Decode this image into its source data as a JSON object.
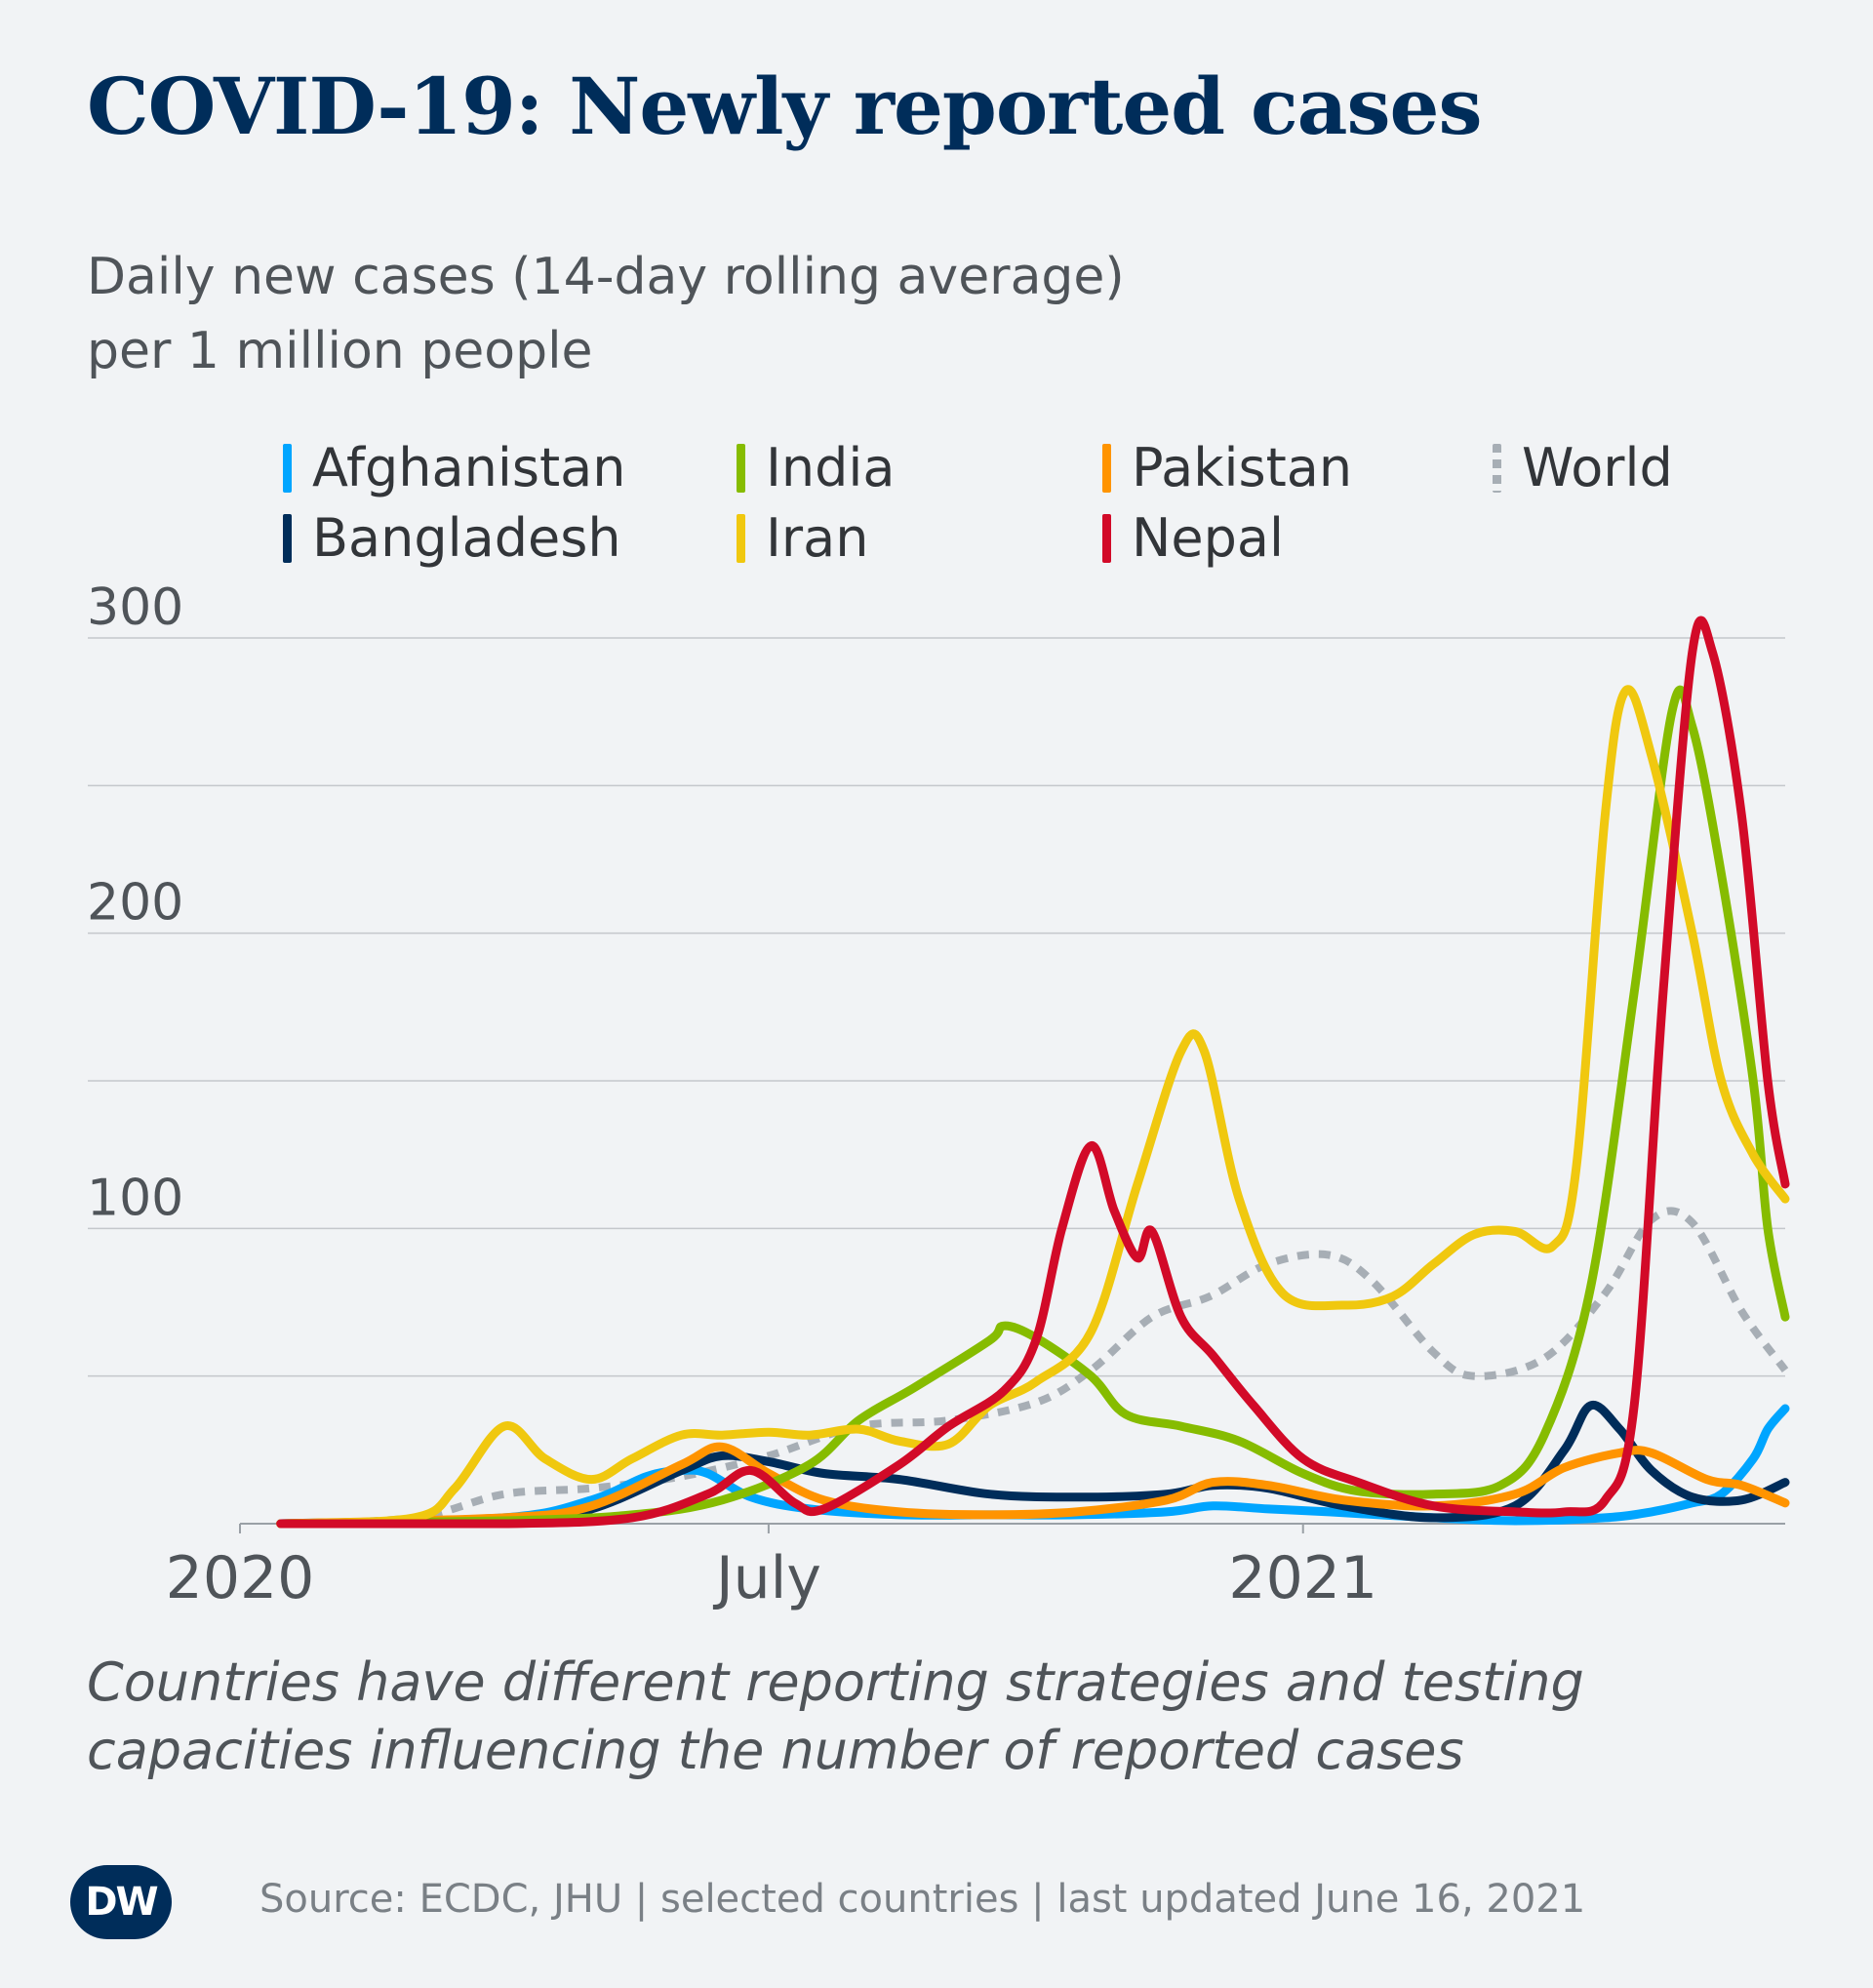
{
  "header": {
    "title": "COVID-19: Newly reported cases",
    "subtitle_line1": "Daily new cases (14-day rolling average)",
    "subtitle_line2": "per 1 million people"
  },
  "footer": {
    "note_line1": "Countries have different reporting strategies and testing",
    "note_line2": "capacities influencing the number of reported cases",
    "source": "Source: ECDC, JHU | selected countries | last updated June 16, 2021",
    "logo": "DW"
  },
  "legend": {
    "afghanistan": "Afghanistan",
    "india": "India",
    "pakistan": "Pakistan",
    "world": "World",
    "bangladesh": "Bangladesh",
    "iran": "Iran",
    "nepal": "Nepal"
  },
  "colors": {
    "background": "#f1f3f5",
    "title": "#002d5a",
    "grid": "#c4c7cb"
  },
  "chart_data": {
    "type": "line",
    "title": "COVID-19: Newly reported cases",
    "ylabel": "Daily new cases (14-day rolling average) per 1 million people",
    "ylim": [
      0,
      300
    ],
    "y_ticks": [
      100,
      200,
      300
    ],
    "grid": true,
    "x_ticks": [
      {
        "date": "2020-01-01",
        "label": "2020"
      },
      {
        "date": "2020-07-01",
        "label": "July"
      },
      {
        "date": "2021-01-01",
        "label": "2021"
      }
    ],
    "xlim": [
      "2020-01-01",
      "2021-06-16"
    ],
    "legend_position": "top",
    "series": [
      {
        "name": "Afghanistan",
        "color": "#00a5ff",
        "dash": false,
        "points": [
          [
            "2020-01-15",
            0
          ],
          [
            "2020-04-01",
            2
          ],
          [
            "2020-05-01",
            8
          ],
          [
            "2020-05-20",
            16
          ],
          [
            "2020-06-01",
            18
          ],
          [
            "2020-06-10",
            17
          ],
          [
            "2020-06-25",
            9
          ],
          [
            "2020-07-15",
            5
          ],
          [
            "2020-08-15",
            3
          ],
          [
            "2020-09-15",
            3
          ],
          [
            "2020-10-15",
            3
          ],
          [
            "2020-11-15",
            4
          ],
          [
            "2020-12-01",
            6
          ],
          [
            "2020-12-20",
            5
          ],
          [
            "2021-01-10",
            4
          ],
          [
            "2021-02-15",
            2
          ],
          [
            "2021-03-15",
            1
          ],
          [
            "2021-04-15",
            2
          ],
          [
            "2021-05-01",
            4
          ],
          [
            "2021-05-15",
            7
          ],
          [
            "2021-05-25",
            10
          ],
          [
            "2021-06-05",
            22
          ],
          [
            "2021-06-10",
            32
          ],
          [
            "2021-06-16",
            39
          ]
        ]
      },
      {
        "name": "Bangladesh",
        "color": "#002d5a",
        "dash": false,
        "points": [
          [
            "2020-01-15",
            0
          ],
          [
            "2020-04-01",
            1
          ],
          [
            "2020-05-01",
            5
          ],
          [
            "2020-06-01",
            18
          ],
          [
            "2020-06-15",
            23
          ],
          [
            "2020-07-01",
            21
          ],
          [
            "2020-07-20",
            17
          ],
          [
            "2020-08-15",
            15
          ],
          [
            "2020-09-15",
            10
          ],
          [
            "2020-10-15",
            9
          ],
          [
            "2020-11-15",
            10
          ],
          [
            "2020-12-01",
            13
          ],
          [
            "2020-12-20",
            12
          ],
          [
            "2021-01-15",
            6
          ],
          [
            "2021-02-15",
            2
          ],
          [
            "2021-03-15",
            6
          ],
          [
            "2021-04-01",
            25
          ],
          [
            "2021-04-10",
            40
          ],
          [
            "2021-04-20",
            32
          ],
          [
            "2021-05-01",
            18
          ],
          [
            "2021-05-15",
            9
          ],
          [
            "2021-06-01",
            8
          ],
          [
            "2021-06-16",
            14
          ]
        ]
      },
      {
        "name": "India",
        "color": "#86bc00",
        "dash": false,
        "points": [
          [
            "2020-01-15",
            0
          ],
          [
            "2020-04-01",
            1
          ],
          [
            "2020-05-15",
            3
          ],
          [
            "2020-06-15",
            8
          ],
          [
            "2020-07-15",
            20
          ],
          [
            "2020-08-01",
            35
          ],
          [
            "2020-08-20",
            46
          ],
          [
            "2020-09-15",
            62
          ],
          [
            "2020-09-20",
            67
          ],
          [
            "2020-10-01",
            63
          ],
          [
            "2020-10-20",
            50
          ],
          [
            "2020-11-01",
            37
          ],
          [
            "2020-11-20",
            33
          ],
          [
            "2020-12-10",
            28
          ],
          [
            "2021-01-01",
            17
          ],
          [
            "2021-01-20",
            11
          ],
          [
            "2021-02-15",
            10
          ],
          [
            "2021-03-10",
            13
          ],
          [
            "2021-03-25",
            30
          ],
          [
            "2021-04-10",
            80
          ],
          [
            "2021-04-25",
            180
          ],
          [
            "2021-05-08",
            275
          ],
          [
            "2021-05-15",
            270
          ],
          [
            "2021-05-25",
            220
          ],
          [
            "2021-06-05",
            150
          ],
          [
            "2021-06-10",
            100
          ],
          [
            "2021-06-16",
            70
          ]
        ]
      },
      {
        "name": "Iran",
        "color": "#f0c80f",
        "dash": false,
        "points": [
          [
            "2020-01-15",
            0
          ],
          [
            "2020-03-01",
            2
          ],
          [
            "2020-03-15",
            12
          ],
          [
            "2020-04-01",
            33
          ],
          [
            "2020-04-15",
            22
          ],
          [
            "2020-05-01",
            15
          ],
          [
            "2020-05-15",
            22
          ],
          [
            "2020-06-01",
            30
          ],
          [
            "2020-06-15",
            30
          ],
          [
            "2020-07-01",
            31
          ],
          [
            "2020-07-15",
            30
          ],
          [
            "2020-08-01",
            32
          ],
          [
            "2020-08-15",
            28
          ],
          [
            "2020-09-01",
            27
          ],
          [
            "2020-09-15",
            40
          ],
          [
            "2020-10-01",
            48
          ],
          [
            "2020-10-20",
            65
          ],
          [
            "2020-11-05",
            115
          ],
          [
            "2020-11-20",
            160
          ],
          [
            "2020-11-28",
            160
          ],
          [
            "2020-12-10",
            110
          ],
          [
            "2020-12-25",
            78
          ],
          [
            "2021-01-15",
            74
          ],
          [
            "2021-02-01",
            77
          ],
          [
            "2021-02-15",
            88
          ],
          [
            "2021-03-01",
            98
          ],
          [
            "2021-03-15",
            99
          ],
          [
            "2021-03-28",
            94
          ],
          [
            "2021-04-05",
            120
          ],
          [
            "2021-04-15",
            240
          ],
          [
            "2021-04-22",
            282
          ],
          [
            "2021-05-01",
            260
          ],
          [
            "2021-05-15",
            200
          ],
          [
            "2021-05-25",
            150
          ],
          [
            "2021-06-05",
            125
          ],
          [
            "2021-06-16",
            110
          ]
        ]
      },
      {
        "name": "Pakistan",
        "color": "#ff9400",
        "dash": false,
        "points": [
          [
            "2020-01-15",
            0
          ],
          [
            "2020-04-01",
            2
          ],
          [
            "2020-05-01",
            6
          ],
          [
            "2020-06-01",
            20
          ],
          [
            "2020-06-15",
            26
          ],
          [
            "2020-07-01",
            17
          ],
          [
            "2020-07-20",
            8
          ],
          [
            "2020-08-15",
            4
          ],
          [
            "2020-09-15",
            3
          ],
          [
            "2020-10-15",
            4
          ],
          [
            "2020-11-15",
            8
          ],
          [
            "2020-12-01",
            14
          ],
          [
            "2020-12-20",
            13
          ],
          [
            "2021-01-15",
            8
          ],
          [
            "2021-02-15",
            6
          ],
          [
            "2021-03-15",
            10
          ],
          [
            "2021-04-01",
            19
          ],
          [
            "2021-04-20",
            24
          ],
          [
            "2021-05-01",
            24
          ],
          [
            "2021-05-20",
            15
          ],
          [
            "2021-06-01",
            13
          ],
          [
            "2021-06-16",
            7
          ]
        ]
      },
      {
        "name": "Nepal",
        "color": "#d20a28",
        "dash": false,
        "points": [
          [
            "2020-01-15",
            0
          ],
          [
            "2020-04-01",
            0
          ],
          [
            "2020-05-15",
            2
          ],
          [
            "2020-06-10",
            10
          ],
          [
            "2020-06-25",
            18
          ],
          [
            "2020-07-10",
            7
          ],
          [
            "2020-07-20",
            5
          ],
          [
            "2020-08-15",
            20
          ],
          [
            "2020-09-01",
            33
          ],
          [
            "2020-09-20",
            45
          ],
          [
            "2020-10-01",
            62
          ],
          [
            "2020-10-10",
            100
          ],
          [
            "2020-10-20",
            128
          ],
          [
            "2020-10-28",
            106
          ],
          [
            "2020-11-05",
            90
          ],
          [
            "2020-11-10",
            99
          ],
          [
            "2020-11-20",
            70
          ],
          [
            "2020-12-01",
            57
          ],
          [
            "2020-12-15",
            40
          ],
          [
            "2021-01-01",
            22
          ],
          [
            "2021-01-20",
            14
          ],
          [
            "2021-02-15",
            6
          ],
          [
            "2021-03-15",
            4
          ],
          [
            "2021-04-01",
            4
          ],
          [
            "2021-04-15",
            8
          ],
          [
            "2021-04-25",
            40
          ],
          [
            "2021-05-05",
            180
          ],
          [
            "2021-05-15",
            295
          ],
          [
            "2021-05-22",
            295
          ],
          [
            "2021-06-01",
            240
          ],
          [
            "2021-06-10",
            150
          ],
          [
            "2021-06-16",
            115
          ]
        ]
      },
      {
        "name": "World",
        "color": "#a7aeb5",
        "dash": true,
        "points": [
          [
            "2020-01-15",
            0
          ],
          [
            "2020-03-01",
            2
          ],
          [
            "2020-04-01",
            10
          ],
          [
            "2020-05-01",
            12
          ],
          [
            "2020-06-01",
            16
          ],
          [
            "2020-07-01",
            23
          ],
          [
            "2020-08-01",
            33
          ],
          [
            "2020-09-01",
            35
          ],
          [
            "2020-10-01",
            41
          ],
          [
            "2020-10-20",
            52
          ],
          [
            "2020-11-10",
            70
          ],
          [
            "2020-11-30",
            77
          ],
          [
            "2020-12-20",
            88
          ],
          [
            "2021-01-10",
            91
          ],
          [
            "2021-01-25",
            82
          ],
          [
            "2021-02-15",
            58
          ],
          [
            "2021-03-01",
            50
          ],
          [
            "2021-03-25",
            56
          ],
          [
            "2021-04-15",
            78
          ],
          [
            "2021-05-01",
            103
          ],
          [
            "2021-05-15",
            102
          ],
          [
            "2021-06-01",
            72
          ],
          [
            "2021-06-16",
            52
          ]
        ]
      }
    ]
  }
}
